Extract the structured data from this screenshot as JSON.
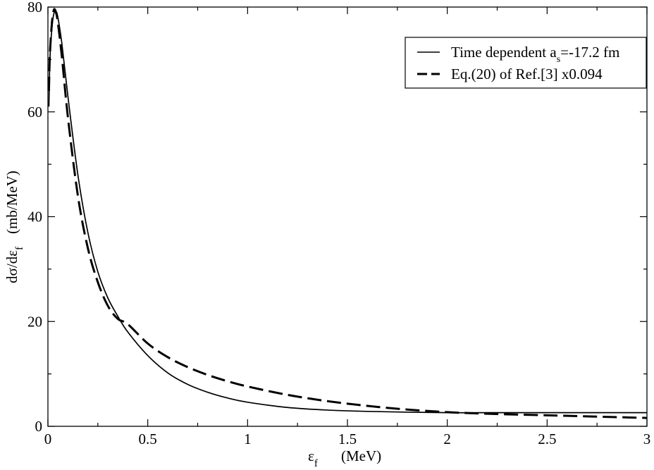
{
  "chart_data": {
    "type": "line",
    "title": "",
    "xlabel": {
      "base": "ε",
      "sub": "f",
      "unit": "(MeV)"
    },
    "ylabel": {
      "main": "dσ/dε",
      "sub": "f",
      "unit": "(mb/MeV)"
    },
    "xlim": [
      0,
      3
    ],
    "ylim": [
      0,
      80
    ],
    "x_ticks": [
      0,
      0.5,
      1,
      1.5,
      2,
      2.5,
      3
    ],
    "x_tick_labels": [
      "0",
      "0.5",
      "1",
      "1.5",
      "2",
      "2.5",
      "3"
    ],
    "y_ticks": [
      0,
      20,
      40,
      60,
      80
    ],
    "y_tick_labels": [
      "0",
      "20",
      "40",
      "60",
      "80"
    ],
    "grid": false,
    "legend_position": "top-right",
    "series": [
      {
        "name": "Time dependent",
        "label_main": "Time dependent  a",
        "label_sub": "s",
        "label_rest": "=-17.2 fm",
        "style": "solid",
        "x": [
          0.005,
          0.01,
          0.02,
          0.03,
          0.04,
          0.05,
          0.07,
          0.1,
          0.15,
          0.2,
          0.25,
          0.3,
          0.35,
          0.4,
          0.5,
          0.6,
          0.7,
          0.8,
          0.9,
          1.0,
          1.2,
          1.4,
          1.6,
          1.8,
          2.0,
          2.2,
          2.5,
          2.8,
          3.0
        ],
        "y": [
          61,
          70,
          76,
          78.8,
          79.2,
          78,
          73,
          63,
          48,
          37,
          29.5,
          24.5,
          21,
          18,
          13.5,
          10.2,
          8.0,
          6.5,
          5.4,
          4.6,
          3.6,
          3.1,
          2.85,
          2.7,
          2.6,
          2.6,
          2.6,
          2.6,
          2.6
        ]
      },
      {
        "name": "Eq.(20) of Ref.[3] x0.094",
        "label_main": "Eq.(20) of Ref.[3] x0.094",
        "label_sub": "",
        "label_rest": "",
        "style": "dashed",
        "x": [
          0.005,
          0.01,
          0.02,
          0.03,
          0.04,
          0.05,
          0.07,
          0.1,
          0.15,
          0.2,
          0.25,
          0.3,
          0.35,
          0.4,
          0.5,
          0.6,
          0.7,
          0.8,
          0.9,
          1.0,
          1.2,
          1.4,
          1.6,
          1.8,
          2.0,
          2.2,
          2.5,
          2.8,
          3.0
        ],
        "y": [
          64,
          71,
          77,
          79.5,
          79,
          77,
          70.5,
          59,
          44,
          34,
          27.5,
          23,
          20.5,
          19.5,
          15.8,
          13.2,
          11.3,
          9.8,
          8.6,
          7.6,
          6.0,
          4.8,
          3.9,
          3.2,
          2.7,
          2.4,
          2.1,
          1.8,
          1.6
        ]
      }
    ]
  }
}
